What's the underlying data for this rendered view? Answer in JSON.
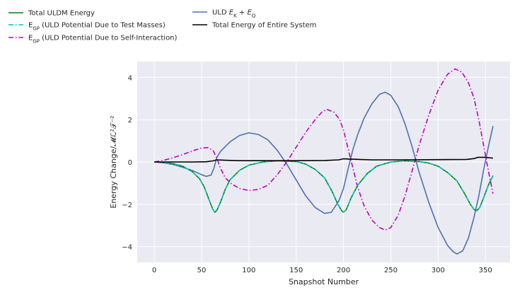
{
  "chart_data": {
    "type": "line",
    "xlabel": "Snapshot Number",
    "ylabel": "Energy Change/𝓜ℒ²𝒯⁻²",
    "xlim": [
      -18,
      376
    ],
    "ylim": [
      -4.75,
      4.75
    ],
    "xticks": [
      0,
      50,
      100,
      150,
      200,
      250,
      300,
      350
    ],
    "yticks": [
      -4,
      -2,
      0,
      2,
      4
    ],
    "grid": true,
    "background": "#eaeaf2",
    "legend_placement": "top-left, outside plot",
    "series": [
      {
        "name": "Total ULDM Energy",
        "color": "#008000",
        "style": "solid",
        "points": [
          [
            0,
            0
          ],
          [
            10,
            -0.02
          ],
          [
            20,
            -0.08
          ],
          [
            30,
            -0.2
          ],
          [
            40,
            -0.45
          ],
          [
            48,
            -0.8
          ],
          [
            53,
            -1.2
          ],
          [
            58,
            -1.8
          ],
          [
            62,
            -2.25
          ],
          [
            64,
            -2.38
          ],
          [
            66,
            -2.3
          ],
          [
            70,
            -1.9
          ],
          [
            75,
            -1.3
          ],
          [
            80,
            -0.85
          ],
          [
            90,
            -0.4
          ],
          [
            100,
            -0.15
          ],
          [
            115,
            0
          ],
          [
            130,
            0.05
          ],
          [
            150,
            0.02
          ],
          [
            160,
            -0.1
          ],
          [
            170,
            -0.35
          ],
          [
            180,
            -0.75
          ],
          [
            188,
            -1.4
          ],
          [
            194,
            -2
          ],
          [
            198,
            -2.3
          ],
          [
            200,
            -2.38
          ],
          [
            203,
            -2.25
          ],
          [
            208,
            -1.7
          ],
          [
            215,
            -1.1
          ],
          [
            225,
            -0.55
          ],
          [
            235,
            -0.2
          ],
          [
            250,
            0
          ],
          [
            265,
            0.05
          ],
          [
            280,
            0.02
          ],
          [
            290,
            -0.05
          ],
          [
            300,
            -0.2
          ],
          [
            310,
            -0.5
          ],
          [
            320,
            -0.9
          ],
          [
            328,
            -1.5
          ],
          [
            334,
            -2
          ],
          [
            338,
            -2.25
          ],
          [
            341,
            -2.3
          ],
          [
            344,
            -2.15
          ],
          [
            348,
            -1.7
          ],
          [
            353,
            -1.1
          ],
          [
            358,
            -0.65
          ]
        ]
      },
      {
        "name": "$E_{GP}$ (ULD Potential Due to Test Masses)",
        "color": "#00bfbf",
        "style": "dashdot",
        "points": [
          [
            0,
            0
          ],
          [
            10,
            -0.02
          ],
          [
            20,
            -0.08
          ],
          [
            30,
            -0.2
          ],
          [
            40,
            -0.45
          ],
          [
            48,
            -0.8
          ],
          [
            53,
            -1.2
          ],
          [
            58,
            -1.8
          ],
          [
            62,
            -2.25
          ],
          [
            64,
            -2.38
          ],
          [
            66,
            -2.3
          ],
          [
            70,
            -1.9
          ],
          [
            75,
            -1.3
          ],
          [
            80,
            -0.85
          ],
          [
            90,
            -0.4
          ],
          [
            100,
            -0.15
          ],
          [
            115,
            0
          ],
          [
            130,
            0.05
          ],
          [
            150,
            0.02
          ],
          [
            160,
            -0.1
          ],
          [
            170,
            -0.35
          ],
          [
            180,
            -0.75
          ],
          [
            188,
            -1.4
          ],
          [
            194,
            -2
          ],
          [
            198,
            -2.3
          ],
          [
            200,
            -2.38
          ],
          [
            203,
            -2.25
          ],
          [
            208,
            -1.7
          ],
          [
            215,
            -1.1
          ],
          [
            225,
            -0.55
          ],
          [
            235,
            -0.2
          ],
          [
            250,
            0
          ],
          [
            265,
            0.05
          ],
          [
            280,
            0.02
          ],
          [
            290,
            -0.05
          ],
          [
            300,
            -0.2
          ],
          [
            310,
            -0.5
          ],
          [
            320,
            -0.9
          ],
          [
            328,
            -1.5
          ],
          [
            334,
            -2
          ],
          [
            338,
            -2.25
          ],
          [
            341,
            -2.3
          ],
          [
            344,
            -2.15
          ],
          [
            348,
            -1.7
          ],
          [
            353,
            -1.1
          ],
          [
            358,
            -0.65
          ]
        ]
      },
      {
        "name": "$E_{GP}$ (ULD Potential Due to Self-Interaction)",
        "color": "#bf00bf",
        "style": "dashdot",
        "points": [
          [
            0,
            0
          ],
          [
            10,
            0.08
          ],
          [
            20,
            0.2
          ],
          [
            30,
            0.35
          ],
          [
            40,
            0.52
          ],
          [
            50,
            0.66
          ],
          [
            57,
            0.68
          ],
          [
            62,
            0.55
          ],
          [
            66,
            0.2
          ],
          [
            70,
            -0.3
          ],
          [
            75,
            -0.75
          ],
          [
            82,
            -1.05
          ],
          [
            90,
            -1.25
          ],
          [
            100,
            -1.35
          ],
          [
            110,
            -1.3
          ],
          [
            120,
            -1.1
          ],
          [
            130,
            -0.6
          ],
          [
            140,
            0
          ],
          [
            150,
            0.7
          ],
          [
            160,
            1.4
          ],
          [
            170,
            2
          ],
          [
            178,
            2.4
          ],
          [
            183,
            2.48
          ],
          [
            190,
            2.35
          ],
          [
            196,
            2
          ],
          [
            200,
            1.5
          ],
          [
            205,
            0.6
          ],
          [
            210,
            -0.3
          ],
          [
            215,
            -1.2
          ],
          [
            222,
            -2.1
          ],
          [
            230,
            -2.75
          ],
          [
            238,
            -3.1
          ],
          [
            244,
            -3.22
          ],
          [
            250,
            -3.1
          ],
          [
            258,
            -2.5
          ],
          [
            265,
            -1.6
          ],
          [
            272,
            -0.5
          ],
          [
            280,
            0.8
          ],
          [
            290,
            2.2
          ],
          [
            300,
            3.4
          ],
          [
            310,
            4.15
          ],
          [
            318,
            4.4
          ],
          [
            325,
            4.25
          ],
          [
            332,
            3.75
          ],
          [
            338,
            3
          ],
          [
            343,
            2
          ],
          [
            348,
            0.8
          ],
          [
            353,
            -0.4
          ],
          [
            358,
            -1.5
          ]
        ]
      },
      {
        "name": "ULD $E_K + E_Q$",
        "color": "#4c72b0",
        "style": "solid",
        "points": [
          [
            0,
            0
          ],
          [
            10,
            -0.04
          ],
          [
            20,
            -0.12
          ],
          [
            30,
            -0.25
          ],
          [
            40,
            -0.4
          ],
          [
            50,
            -0.6
          ],
          [
            55,
            -0.68
          ],
          [
            60,
            -0.62
          ],
          [
            63,
            -0.3
          ],
          [
            66,
            0.2
          ],
          [
            70,
            0.5
          ],
          [
            80,
            0.95
          ],
          [
            90,
            1.25
          ],
          [
            100,
            1.38
          ],
          [
            110,
            1.3
          ],
          [
            120,
            1.05
          ],
          [
            130,
            0.55
          ],
          [
            140,
            -0.1
          ],
          [
            150,
            -0.85
          ],
          [
            160,
            -1.6
          ],
          [
            170,
            -2.15
          ],
          [
            180,
            -2.43
          ],
          [
            187,
            -2.38
          ],
          [
            195,
            -1.85
          ],
          [
            200,
            -1.25
          ],
          [
            205,
            -0.3
          ],
          [
            210,
            0.6
          ],
          [
            215,
            1.3
          ],
          [
            222,
            2.1
          ],
          [
            230,
            2.75
          ],
          [
            238,
            3.2
          ],
          [
            244,
            3.3
          ],
          [
            250,
            3.15
          ],
          [
            258,
            2.6
          ],
          [
            265,
            1.8
          ],
          [
            272,
            0.8
          ],
          [
            280,
            -0.5
          ],
          [
            290,
            -1.9
          ],
          [
            300,
            -3.1
          ],
          [
            310,
            -3.95
          ],
          [
            316,
            -4.25
          ],
          [
            320,
            -4.35
          ],
          [
            326,
            -4.2
          ],
          [
            332,
            -3.6
          ],
          [
            338,
            -2.6
          ],
          [
            343,
            -1.6
          ],
          [
            348,
            -0.4
          ],
          [
            353,
            0.7
          ],
          [
            358,
            1.7
          ]
        ]
      },
      {
        "name": "Total Energy of Entire System",
        "color": "#000000",
        "style": "solid",
        "points": [
          [
            0,
            0
          ],
          [
            20,
            0
          ],
          [
            40,
            0
          ],
          [
            55,
            0.01
          ],
          [
            62,
            0.05
          ],
          [
            66,
            0.1
          ],
          [
            75,
            0.08
          ],
          [
            90,
            0.06
          ],
          [
            120,
            0.06
          ],
          [
            150,
            0.06
          ],
          [
            180,
            0.07
          ],
          [
            195,
            0.1
          ],
          [
            200,
            0.15
          ],
          [
            210,
            0.13
          ],
          [
            230,
            0.1
          ],
          [
            260,
            0.1
          ],
          [
            300,
            0.11
          ],
          [
            330,
            0.12
          ],
          [
            338,
            0.16
          ],
          [
            342,
            0.22
          ],
          [
            350,
            0.22
          ],
          [
            358,
            0.18
          ]
        ]
      }
    ]
  }
}
